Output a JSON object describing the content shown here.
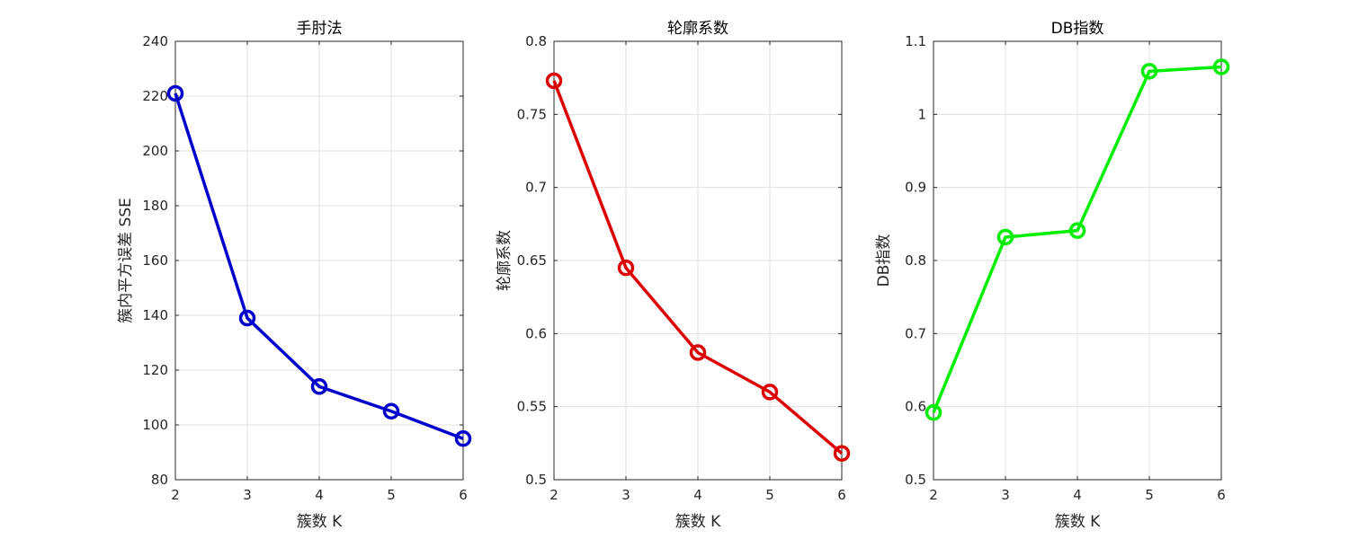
{
  "chart_data": [
    {
      "type": "line",
      "title": "手肘法",
      "xlabel": "簇数 K",
      "ylabel": "簇内平方误差 SSE",
      "x": [
        2,
        3,
        4,
        5,
        6
      ],
      "values": [
        221,
        139,
        114,
        105,
        95
      ],
      "xlim": [
        2,
        6
      ],
      "ylim": [
        80,
        240
      ],
      "xticks": [
        2,
        3,
        4,
        5,
        6
      ],
      "yticks": [
        80,
        100,
        120,
        140,
        160,
        180,
        200,
        220,
        240
      ],
      "ytick_labels": [
        "80",
        "100",
        "120",
        "140",
        "160",
        "180",
        "200",
        "220",
        "240"
      ],
      "color": "#0000cc",
      "marker": "circle",
      "grid": true
    },
    {
      "type": "line",
      "title": "轮廓系数",
      "xlabel": "簇数 K",
      "ylabel": "轮廓系数",
      "x": [
        2,
        3,
        4,
        5,
        6
      ],
      "values": [
        0.773,
        0.645,
        0.587,
        0.56,
        0.518
      ],
      "xlim": [
        2,
        6
      ],
      "ylim": [
        0.5,
        0.8
      ],
      "xticks": [
        2,
        3,
        4,
        5,
        6
      ],
      "yticks": [
        0.5,
        0.55,
        0.6,
        0.65,
        0.7,
        0.75,
        0.8
      ],
      "ytick_labels": [
        "0.5",
        "0.55",
        "0.6",
        "0.65",
        "0.7",
        "0.75",
        "0.8"
      ],
      "color": "#dd0000",
      "marker": "circle",
      "grid": true
    },
    {
      "type": "line",
      "title": "DB指数",
      "xlabel": "簇数 K",
      "ylabel": "DB指数",
      "x": [
        2,
        3,
        4,
        5,
        6
      ],
      "values": [
        0.592,
        0.832,
        0.841,
        1.059,
        1.065
      ],
      "xlim": [
        2,
        6
      ],
      "ylim": [
        0.5,
        1.1
      ],
      "xticks": [
        2,
        3,
        4,
        5,
        6
      ],
      "yticks": [
        0.5,
        0.6,
        0.7,
        0.8,
        0.9,
        1.0,
        1.1
      ],
      "ytick_labels": [
        "0.5",
        "0.6",
        "0.7",
        "0.8",
        "0.9",
        "1",
        "1.1"
      ],
      "color": "#00ee00",
      "marker": "circle",
      "grid": true
    }
  ]
}
